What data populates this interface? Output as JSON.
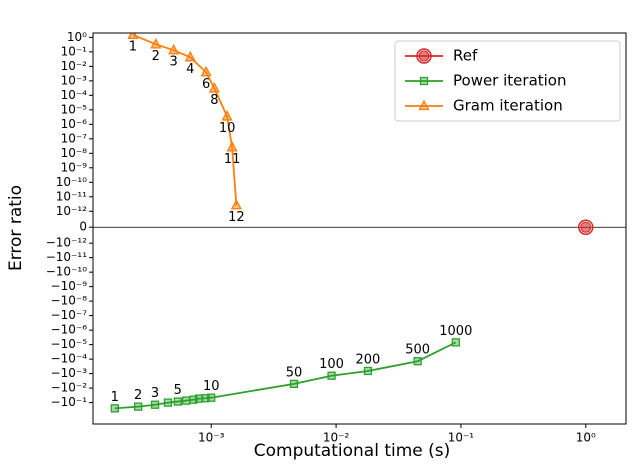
{
  "chart_data": {
    "type": "line",
    "xlabel": "Computational time (s)",
    "ylabel": "Error ratio",
    "xscale": "log",
    "yscale": "symlog",
    "xlim": [
      0.000113,
      2.1
    ],
    "ylim": [
      -3,
      2
    ],
    "xticks": [
      {
        "value": 0.001,
        "label": "10⁻³"
      },
      {
        "value": 0.01,
        "label": "10⁻²"
      },
      {
        "value": 0.1,
        "label": "10⁻¹"
      },
      {
        "value": 1,
        "label": "10⁰"
      }
    ],
    "yticks": [
      {
        "value": 1,
        "label": "10⁰"
      },
      {
        "value": 0.1,
        "label": "10⁻¹"
      },
      {
        "value": 0.01,
        "label": "10⁻²"
      },
      {
        "value": 0.001,
        "label": "10⁻³"
      },
      {
        "value": 0.0001,
        "label": "10⁻⁴"
      },
      {
        "value": 1e-05,
        "label": "10⁻⁵"
      },
      {
        "value": 1e-06,
        "label": "10⁻⁶"
      },
      {
        "value": 1e-07,
        "label": "10⁻⁷"
      },
      {
        "value": 1e-08,
        "label": "10⁻⁸"
      },
      {
        "value": 1e-09,
        "label": "10⁻⁹"
      },
      {
        "value": 1e-10,
        "label": "10⁻¹⁰"
      },
      {
        "value": 1e-11,
        "label": "10⁻¹¹"
      },
      {
        "value": 1e-12,
        "label": "10⁻¹²"
      },
      0,
      {
        "value": -1e-12,
        "label": "−10⁻¹²"
      },
      {
        "value": -1e-11,
        "label": "−10⁻¹¹"
      },
      {
        "value": -1e-10,
        "label": "−10⁻¹⁰"
      },
      {
        "value": -1e-09,
        "label": "−10⁻⁹"
      },
      {
        "value": -1e-08,
        "label": "−10⁻⁸"
      },
      {
        "value": -1e-07,
        "label": "−10⁻⁷"
      },
      {
        "value": -1e-06,
        "label": "−10⁻⁶"
      },
      {
        "value": -1e-05,
        "label": "−10⁻⁵"
      },
      {
        "value": -0.0001,
        "label": "−10⁻⁴"
      },
      {
        "value": -0.001,
        "label": "−10⁻³"
      },
      {
        "value": -0.01,
        "label": "−10⁻²"
      },
      {
        "value": -0.1,
        "label": "−10⁻¹"
      }
    ],
    "legend": "upper right",
    "series": [
      {
        "name": "Ref",
        "color": "#d62728",
        "marker": "circle",
        "x": [
          1
        ],
        "values": [
          0
        ]
      },
      {
        "name": "Power iteration",
        "color": "#2ca02c",
        "marker": "square",
        "x": [
          0.000169,
          0.00026,
          0.000355,
          0.00045,
          0.00054,
          0.00063,
          0.00072,
          0.0008,
          0.0009,
          0.001,
          0.0046,
          0.0092,
          0.018,
          0.045,
          0.091
        ],
        "values": [
          -0.25,
          -0.19,
          -0.14,
          -0.1,
          -0.085,
          -0.073,
          -0.063,
          -0.053,
          -0.05,
          -0.046,
          -0.0051,
          -0.0014,
          -0.00066,
          -0.00014,
          -7e-06
        ],
        "point_labels": [
          "1",
          "2",
          "3",
          null,
          "5",
          null,
          null,
          null,
          null,
          "10",
          "50",
          "100",
          "200",
          "500",
          "1000"
        ]
      },
      {
        "name": "Gram iteration",
        "color": "#ff7f0e",
        "marker": "triangle",
        "x": [
          0.000236,
          0.00036,
          0.0005,
          0.00068,
          0.00091,
          0.00106,
          0.00134,
          0.00147,
          0.00159
        ],
        "values": [
          1.5,
          0.33,
          0.13,
          0.042,
          0.0039,
          0.0003,
          3.5e-06,
          2.6e-08,
          2.6e-12
        ],
        "point_labels": [
          "1",
          "2",
          "3",
          "4",
          "6",
          "8",
          "10",
          "11",
          "12"
        ]
      }
    ]
  }
}
